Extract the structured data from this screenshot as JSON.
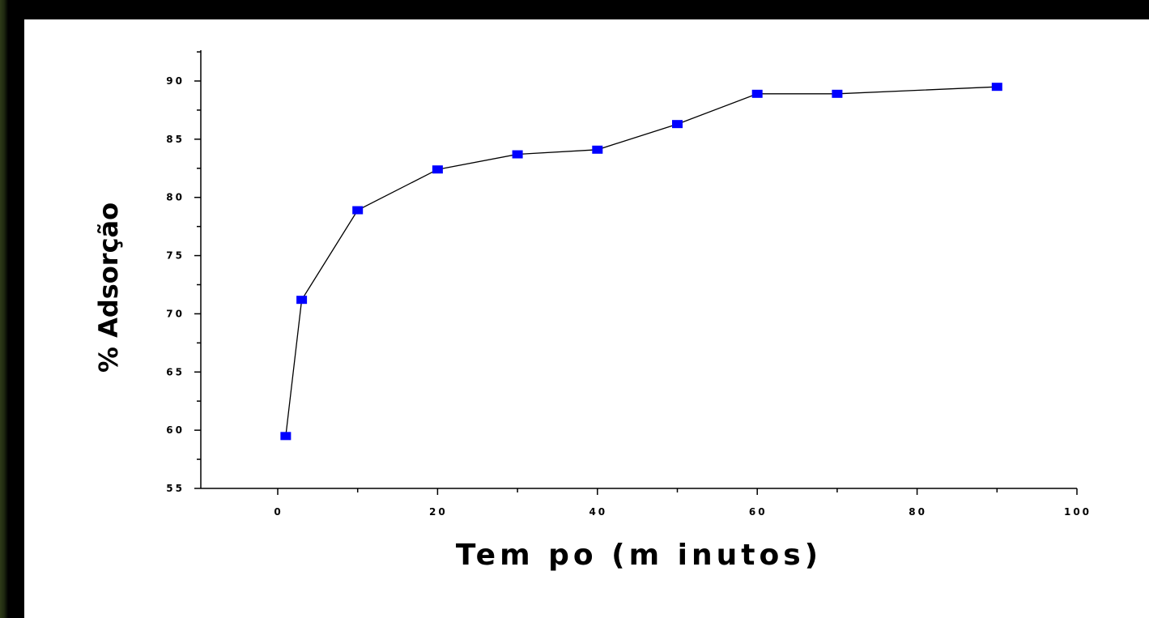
{
  "chart_data": {
    "type": "line",
    "title": "",
    "xlabel": "Tem po (m inutos)",
    "ylabel": "% Adsorção",
    "xlim": [
      -10,
      100
    ],
    "ylim": [
      55,
      92.5
    ],
    "x_ticks": [
      0,
      20,
      40,
      60,
      80,
      100
    ],
    "x_tick_labels": [
      "0",
      "20",
      "40",
      "60",
      "80",
      "100"
    ],
    "y_ticks": [
      55,
      60,
      65,
      70,
      75,
      80,
      85,
      90
    ],
    "y_tick_labels": [
      "55",
      "60",
      "65",
      "70",
      "75",
      "80",
      "85",
      "90"
    ],
    "grid": false,
    "legend": "none",
    "marker": "square",
    "marker_color": "#0000ff",
    "line_color": "#000000",
    "series": [
      {
        "x": [
          1,
          3,
          10,
          20,
          30,
          40,
          50,
          60,
          70,
          90
        ],
        "values": [
          59.5,
          71.2,
          78.9,
          82.4,
          83.7,
          84.1,
          86.3,
          88.9,
          88.9,
          89.5
        ]
      }
    ]
  }
}
